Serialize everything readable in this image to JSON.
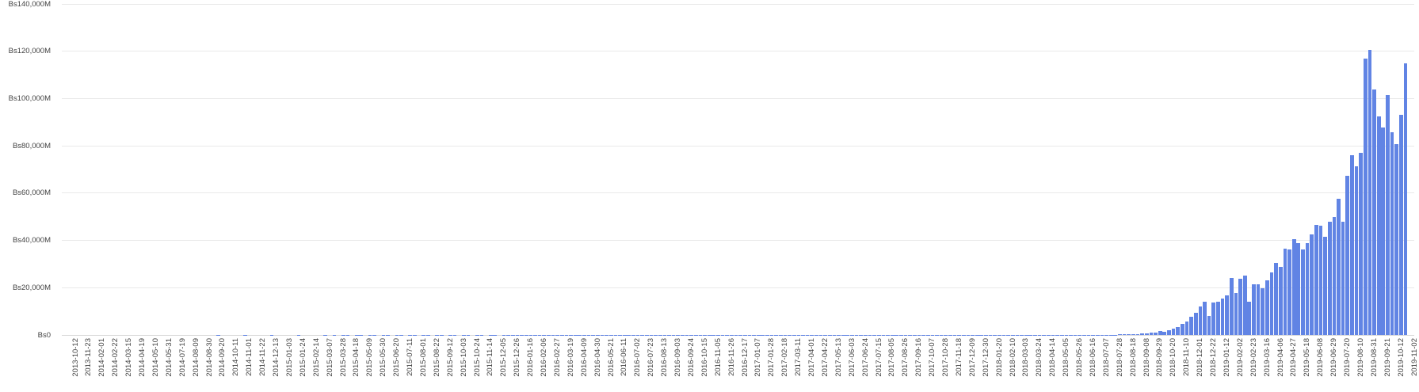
{
  "chart_data": {
    "type": "bar",
    "title": "",
    "xlabel": "",
    "ylabel": "",
    "unit": "Bs (millions)",
    "value_format_prefix": "Bs",
    "value_format_suffix": "M",
    "ylim": [
      0,
      140000
    ],
    "grid": "horizontal",
    "legend": "none",
    "bars_per_tick": 3,
    "y_axis": {
      "tick_labels": [
        "Bs140,000M",
        "Bs120,000M",
        "Bs100,000M",
        "Bs80,000M",
        "Bs60,000M",
        "Bs40,000M",
        "Bs20,000M",
        "Bs0"
      ],
      "tick_values": [
        140000,
        120000,
        100000,
        80000,
        60000,
        40000,
        20000,
        0
      ]
    },
    "x_tick_labels": [
      "2013-10-12",
      "2013-11-23",
      "2014-02-01",
      "2014-02-22",
      "2014-03-15",
      "2014-04-19",
      "2014-05-10",
      "2014-05-31",
      "2014-07-19",
      "2014-08-09",
      "2014-08-30",
      "2014-09-20",
      "2014-10-11",
      "2014-11-01",
      "2014-11-22",
      "2014-12-13",
      "2015-01-03",
      "2015-01-24",
      "2015-02-14",
      "2015-03-07",
      "2015-03-28",
      "2015-04-18",
      "2015-05-09",
      "2015-05-30",
      "2015-06-20",
      "2015-07-11",
      "2015-08-01",
      "2015-08-22",
      "2015-09-12",
      "2015-10-03",
      "2015-10-24",
      "2015-11-14",
      "2015-12-05",
      "2015-12-26",
      "2016-01-16",
      "2016-02-06",
      "2016-02-27",
      "2016-03-19",
      "2016-04-09",
      "2016-04-30",
      "2016-05-21",
      "2016-06-11",
      "2016-07-02",
      "2016-07-23",
      "2016-08-13",
      "2016-09-03",
      "2016-09-24",
      "2016-10-15",
      "2016-11-05",
      "2016-11-26",
      "2016-12-17",
      "2017-01-07",
      "2017-01-28",
      "2017-02-18",
      "2017-03-11",
      "2017-04-01",
      "2017-04-22",
      "2017-05-13",
      "2017-06-03",
      "2017-06-24",
      "2017-07-15",
      "2017-08-05",
      "2017-08-26",
      "2017-09-16",
      "2017-10-07",
      "2017-10-28",
      "2017-11-18",
      "2017-12-09",
      "2017-12-30",
      "2018-01-20",
      "2018-02-10",
      "2018-03-03",
      "2018-03-24",
      "2018-04-14",
      "2018-05-05",
      "2018-05-26",
      "2018-06-16",
      "2018-07-07",
      "2018-07-28",
      "2018-08-18",
      "2018-09-08",
      "2018-09-29",
      "2018-10-20",
      "2018-11-10",
      "2018-12-01",
      "2018-12-22",
      "2019-01-12",
      "2019-02-02",
      "2019-02-23",
      "2019-03-16",
      "2019-04-06",
      "2019-04-27",
      "2019-05-18",
      "2019-06-08",
      "2019-06-29",
      "2019-07-20",
      "2019-08-10",
      "2019-08-31",
      "2019-09-21",
      "2019-10-12",
      "2019-11-02"
    ],
    "values": [
      0,
      0,
      0,
      0,
      0,
      0,
      0,
      0,
      0,
      0,
      0,
      0,
      0,
      0,
      0,
      0,
      0,
      0,
      0,
      0,
      0,
      0,
      0,
      0,
      0,
      0,
      0,
      0,
      0,
      0,
      0,
      20,
      0,
      0,
      30,
      0,
      0,
      20,
      0,
      0,
      30,
      0,
      0,
      20,
      0,
      0,
      30,
      0,
      0,
      20,
      0,
      0,
      30,
      0,
      0,
      20,
      0,
      0,
      30,
      0,
      40,
      0,
      30,
      50,
      0,
      40,
      30,
      0,
      50,
      40,
      0,
      30,
      50,
      0,
      40,
      30,
      0,
      50,
      40,
      0,
      30,
      50,
      0,
      40,
      30,
      0,
      50,
      40,
      0,
      30,
      50,
      0,
      40,
      30,
      0,
      50,
      40,
      0,
      30,
      50,
      40,
      60,
      30,
      50,
      40,
      60,
      30,
      50,
      40,
      60,
      30,
      50,
      40,
      60,
      30,
      50,
      40,
      60,
      30,
      50,
      40,
      60,
      30,
      50,
      40,
      60,
      30,
      50,
      40,
      60,
      50,
      60,
      40,
      70,
      50,
      60,
      40,
      70,
      50,
      60,
      50,
      70,
      60,
      80,
      50,
      70,
      60,
      80,
      50,
      70,
      60,
      80,
      50,
      70,
      60,
      80,
      50,
      70,
      60,
      80,
      70,
      90,
      60,
      80,
      70,
      90,
      60,
      80,
      70,
      90,
      70,
      90,
      80,
      100,
      70,
      90,
      80,
      100,
      70,
      90,
      80,
      100,
      90,
      110,
      80,
      100,
      90,
      110,
      80,
      100,
      90,
      110,
      80,
      100,
      90,
      110,
      80,
      100,
      90,
      110,
      100,
      120,
      90,
      110,
      100,
      120,
      90,
      110,
      100,
      120,
      100,
      120,
      110,
      130,
      100,
      120,
      110,
      130,
      100,
      120,
      110,
      120,
      120,
      130,
      130,
      140,
      140,
      150,
      150,
      140,
      150,
      140,
      150,
      150,
      150,
      160,
      250,
      250,
      350,
      350,
      500,
      700,
      700,
      900,
      1000,
      1600,
      1500,
      2000,
      2600,
      3200,
      4700,
      5700,
      7800,
      9500,
      12200,
      14200,
      8000,
      13600,
      14200,
      15500,
      16900,
      24200,
      17700,
      23900,
      25000,
      14200,
      21400,
      21600,
      19700,
      23000,
      26500,
      30600,
      28700,
      36500,
      36200,
      40400,
      38800,
      36200,
      38800,
      42700,
      46600,
      46300,
      41600,
      47900,
      49900,
      57700,
      47900,
      67400,
      76000,
      71400,
      77200,
      116900,
      120500,
      103700,
      92500,
      87900,
      101600,
      85600,
      80600,
      93100,
      114900
    ],
    "colors": {
      "bar": "#6184e4",
      "gridline": "#e9e9e9",
      "axis_line": "#d9d9d9",
      "label_text": "#434343",
      "background": "#ffffff"
    }
  }
}
